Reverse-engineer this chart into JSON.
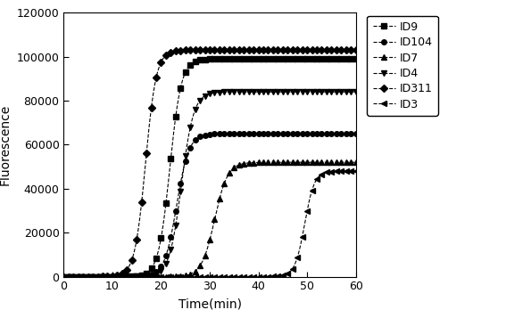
{
  "series": [
    {
      "label": "ID9",
      "marker": "s",
      "midpoint": 21.8,
      "k": 0.85,
      "plateau": 99000,
      "baseline": 0
    },
    {
      "label": "ID104",
      "marker": "o",
      "midpoint": 23.2,
      "k": 0.8,
      "plateau": 65000,
      "baseline": 0
    },
    {
      "label": "ID7",
      "marker": "^",
      "midpoint": 31.0,
      "k": 0.75,
      "plateau": 52000,
      "baseline": 0
    },
    {
      "label": "ID4",
      "marker": "v",
      "midpoint": 24.2,
      "k": 0.8,
      "plateau": 84000,
      "baseline": 0
    },
    {
      "label": "ID311",
      "marker": "D",
      "midpoint": 16.8,
      "k": 0.9,
      "plateau": 103000,
      "baseline": 0
    },
    {
      "label": "ID3",
      "marker": "<",
      "midpoint": 49.5,
      "k": 1.0,
      "plateau": 48000,
      "baseline": 0
    }
  ],
  "color": "#000000",
  "xlabel": "Time(min)",
  "ylabel": "Fluorescence",
  "xlim": [
    0,
    60
  ],
  "ylim": [
    0,
    120000
  ],
  "xticks": [
    0,
    10,
    20,
    30,
    40,
    50,
    60
  ],
  "yticks": [
    0,
    20000,
    40000,
    60000,
    80000,
    100000,
    120000
  ],
  "markersize": 4,
  "linewidth": 0.8,
  "markevery": 1,
  "background_color": "#ffffff"
}
